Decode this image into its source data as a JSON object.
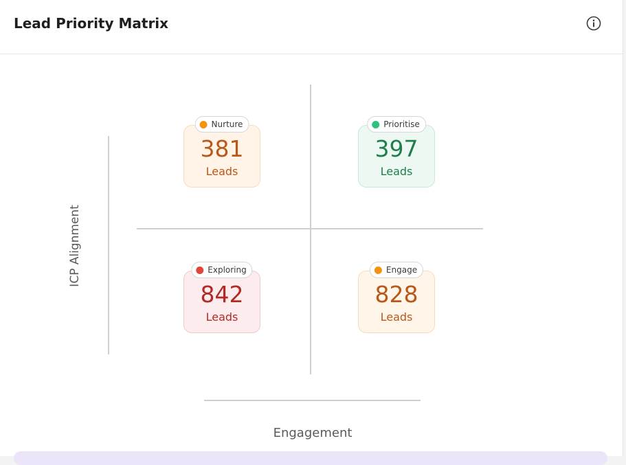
{
  "header": {
    "title": "Lead Priority Matrix",
    "info_icon": "info-circle-icon"
  },
  "axes": {
    "y_label": "ICP Alignment",
    "x_label": "Engagement"
  },
  "quadrants": {
    "nurture": {
      "label": "Nurture",
      "count": "381",
      "unit": "Leads",
      "color": "#f5920f",
      "text_color": "#b8581a",
      "bg": "#fff4e7",
      "border": "#f6dcbc"
    },
    "prioritise": {
      "label": "Prioritise",
      "count": "397",
      "unit": "Leads",
      "color": "#2ec27e",
      "text_color": "#1e7e4c",
      "bg": "#ecf8f1",
      "border": "#c6ead6"
    },
    "exploring": {
      "label": "Exploring",
      "count": "842",
      "unit": "Leads",
      "color": "#e0453a",
      "text_color": "#b22a25",
      "bg": "#fceced",
      "border": "#f2c9cb"
    },
    "engage": {
      "label": "Engage",
      "count": "828",
      "unit": "Leads",
      "color": "#f5920f",
      "text_color": "#b8581a",
      "bg": "#fff6e9",
      "border": "#f6dcbc"
    }
  }
}
